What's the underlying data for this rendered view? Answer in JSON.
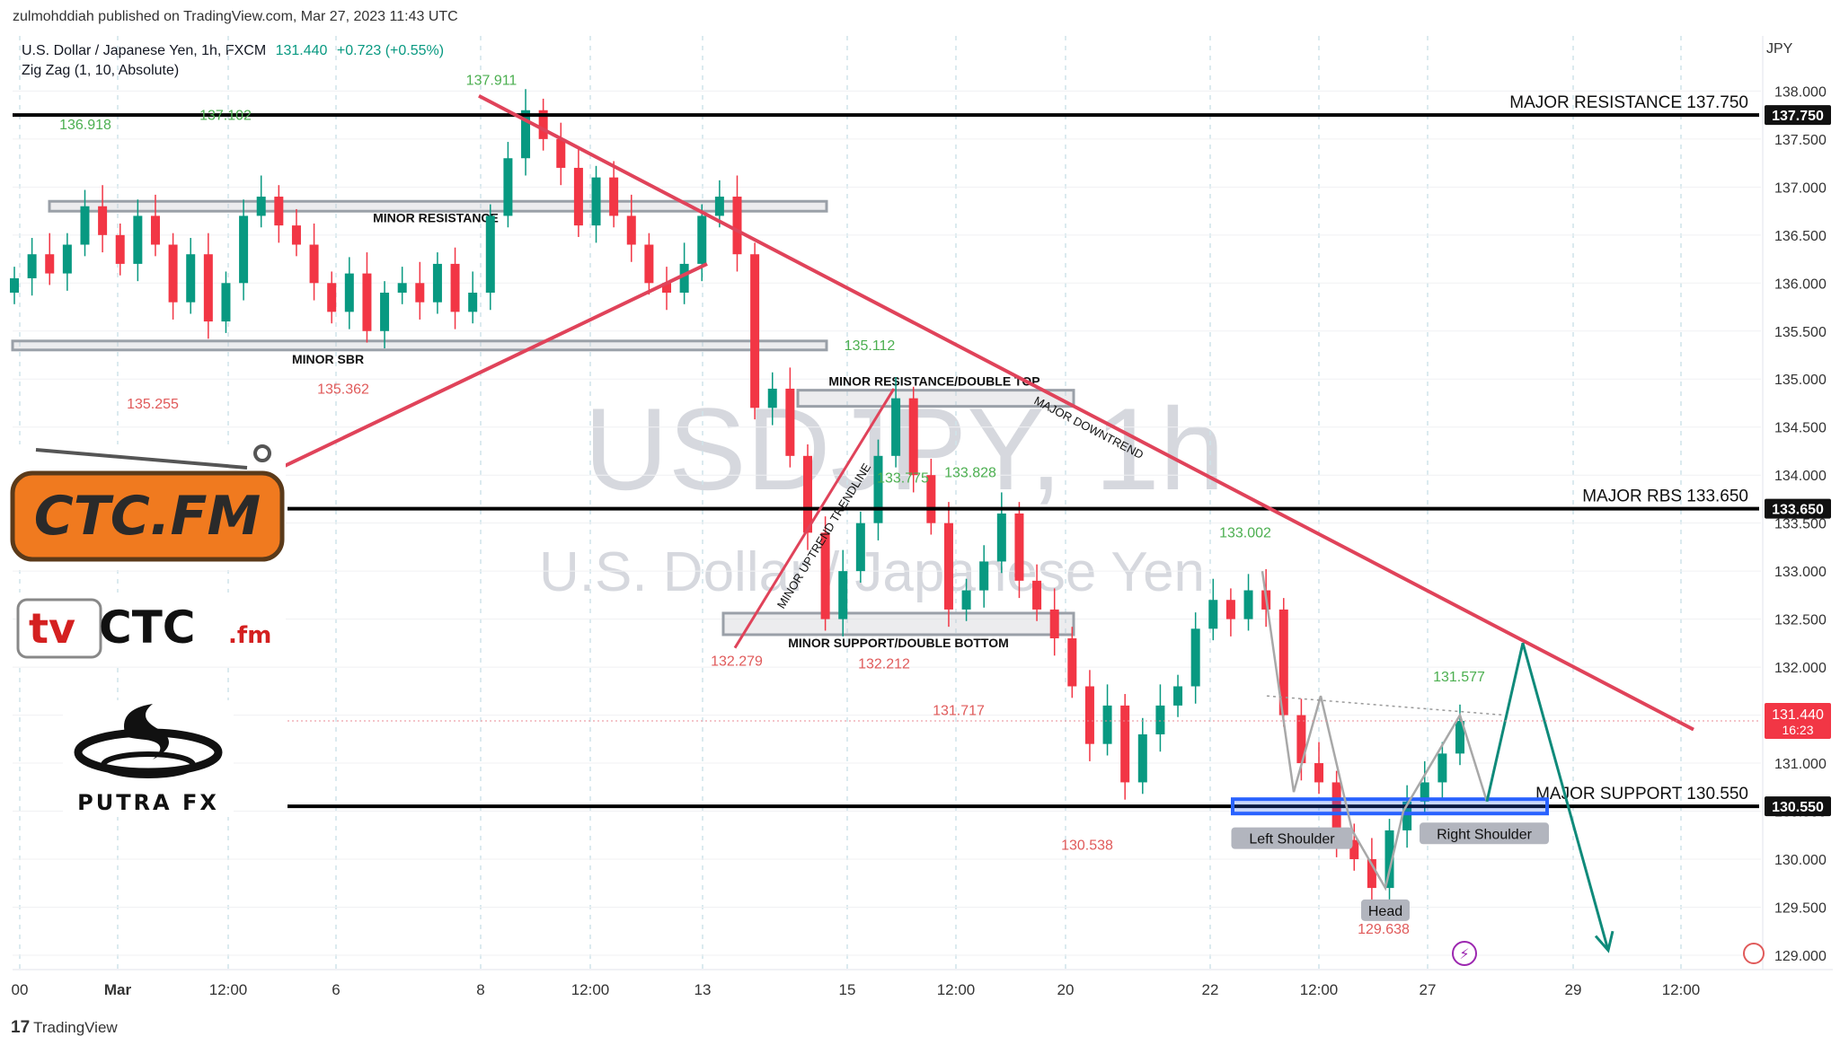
{
  "header": {
    "published": "zulmohddiah published on TradingView.com, Mar 27, 2023 11:43 UTC",
    "symbol_desc": "U.S. Dollar / Japanese Yen, 1h, FXCM",
    "last": "131.440",
    "change": "+0.723 (+0.55%)",
    "indicator": "Zig Zag (1, 10, Absolute)",
    "currency": "JPY"
  },
  "watermark": {
    "symbol": "USDJPY, 1h",
    "name": "U.S. Dollar / Japanese Yen"
  },
  "footer": {
    "brand": "TradingView"
  },
  "logos": {
    "ctc": "CTC.FM",
    "tvctc_a": "tv",
    "tvctc_b": "CTC",
    "tvctc_c": ".fm",
    "putra": "PUTRA FX"
  },
  "colors": {
    "up": "#089981",
    "down": "#f23645",
    "trend": "#e0435a",
    "support_band": "#2962ff",
    "projection": "#0f8a7a"
  },
  "chart_data": {
    "type": "candlestick",
    "y_range": [
      128.85,
      138.2
    ],
    "y_ticks": [
      "129.000",
      "129.500",
      "130.000",
      "130.500",
      "131.000",
      "131.500",
      "132.000",
      "132.500",
      "133.000",
      "133.500",
      "134.000",
      "134.500",
      "135.000",
      "135.500",
      "136.000",
      "136.500",
      "137.000",
      "137.500",
      "138.000"
    ],
    "x_ticks": [
      "00",
      "Mar",
      "12:00",
      "6",
      "8",
      "12:00",
      "13",
      "15",
      "12:00",
      "20",
      "22",
      "12:00",
      "27",
      "29",
      "12:00"
    ],
    "close_series": [
      136.05,
      136.3,
      136.1,
      136.4,
      136.8,
      136.5,
      136.2,
      136.7,
      136.4,
      135.8,
      136.3,
      135.6,
      136.0,
      136.7,
      136.9,
      136.6,
      136.4,
      136.0,
      135.7,
      136.1,
      135.5,
      135.9,
      136.0,
      135.8,
      136.2,
      135.7,
      135.9,
      136.7,
      137.3,
      137.8,
      137.5,
      137.2,
      136.6,
      137.1,
      136.7,
      136.4,
      136.0,
      135.9,
      136.2,
      136.7,
      136.9,
      136.3,
      134.7,
      134.9,
      134.2,
      133.4,
      132.5,
      133.0,
      133.5,
      134.2,
      134.8,
      134.0,
      133.5,
      132.6,
      132.8,
      133.1,
      133.6,
      132.9,
      132.6,
      132.3,
      131.8,
      131.2,
      131.6,
      130.8,
      131.3,
      131.6,
      131.8,
      132.4,
      132.7,
      132.5,
      132.8,
      132.6,
      131.5,
      131.0,
      130.8,
      130.2,
      130.0,
      129.7,
      130.3,
      130.6,
      130.8,
      131.1,
      131.44
    ],
    "zigzag_labels": [
      {
        "text": "136.918",
        "price": 136.918,
        "type": "high"
      },
      {
        "text": "137.102",
        "price": 137.102,
        "type": "high"
      },
      {
        "text": "137.911",
        "price": 137.911,
        "type": "high"
      },
      {
        "text": "135.255",
        "price": 135.255,
        "type": "low"
      },
      {
        "text": "135.362",
        "price": 135.362,
        "type": "low"
      },
      {
        "text": "135.112",
        "price": 135.112,
        "type": "high"
      },
      {
        "text": "133.775",
        "price": 133.775,
        "type": "high"
      },
      {
        "text": "133.828",
        "price": 133.828,
        "type": "high"
      },
      {
        "text": "133.002",
        "price": 133.002,
        "type": "high"
      },
      {
        "text": "131.577",
        "price": 131.577,
        "type": "high"
      },
      {
        "text": "132.279",
        "price": 132.279,
        "type": "low"
      },
      {
        "text": "132.212",
        "price": 132.212,
        "type": "low"
      },
      {
        "text": "131.717",
        "price": 131.717,
        "type": "low"
      },
      {
        "text": "130.538",
        "price": 130.538,
        "type": "low"
      },
      {
        "text": "129.638",
        "price": 129.638,
        "type": "low"
      }
    ],
    "horizontal_levels": [
      {
        "text": "MAJOR RESISTANCE 137.750",
        "price": 137.75,
        "tag": "137.750"
      },
      {
        "text": "MAJOR RBS 133.650",
        "price": 133.65,
        "tag": "133.650"
      },
      {
        "text": "MAJOR SUPPORT 130.550",
        "price": 130.55,
        "tag": "130.550"
      }
    ],
    "zones": [
      {
        "text": "MINOR RESISTANCE",
        "price": 136.8
      },
      {
        "text": "MINOR SBR",
        "price": 135.35
      },
      {
        "text": "MINOR RESISTANCE/DOUBLE TOP",
        "price": 134.8
      },
      {
        "text": "MINOR SUPPORT/DOUBLE BOTTOM",
        "price": 132.45
      }
    ],
    "trendlines": [
      {
        "text": "MAJOR DOWNTREND"
      },
      {
        "text": "MINOR UPTREND TRENDLINE"
      }
    ],
    "pattern_labels": [
      "Left Shoulder",
      "Head",
      "Right Shoulder"
    ],
    "current_price": {
      "price": 131.44,
      "tag": "131.440",
      "countdown": "16:23"
    }
  }
}
